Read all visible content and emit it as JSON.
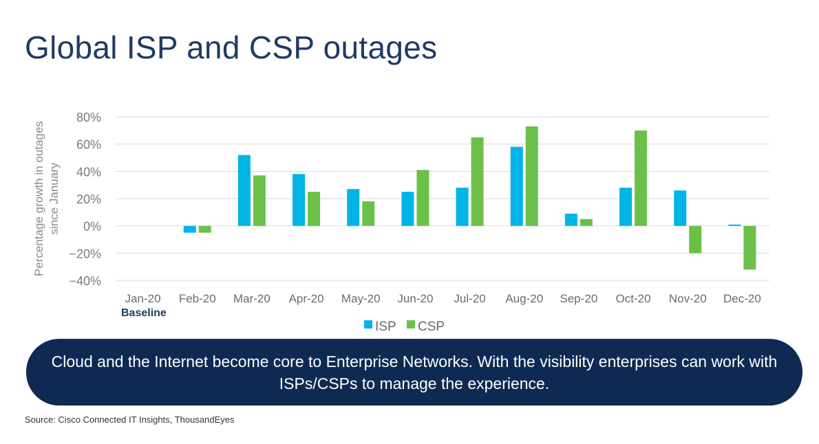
{
  "slide": {
    "title": "Global ISP and CSP outages",
    "baseline_label": "Baseline",
    "banner_text": "Cloud and the Internet become core to Enterprise Networks. With the visibility enterprises can work with ISPs/CSPs to manage the experience.",
    "source": "Source: Cisco Connected IT Insights, ThousandEyes"
  },
  "chart_data": {
    "type": "bar",
    "categories": [
      "Jan-20",
      "Feb-20",
      "Mar-20",
      "Apr-20",
      "May-20",
      "Jun-20",
      "Jul-20",
      "Aug-20",
      "Sep-20",
      "Oct-20",
      "Nov-20",
      "Dec-20"
    ],
    "series": [
      {
        "name": "ISP",
        "color": "#00b4e6",
        "values": [
          0,
          -5,
          52,
          38,
          27,
          25,
          28,
          58,
          9,
          28,
          26,
          1
        ]
      },
      {
        "name": "CSP",
        "color": "#6cc04a",
        "values": [
          0,
          -5,
          37,
          25,
          18,
          41,
          65,
          73,
          5,
          70,
          -20,
          -32
        ]
      }
    ],
    "ylabel": "Percentage growth in outages since January",
    "ylim": [
      -40,
      80
    ],
    "yticks": [
      80,
      60,
      40,
      20,
      0,
      -20,
      -40
    ],
    "ytick_labels": [
      "80%",
      "60%",
      "40%",
      "20%",
      "0%",
      "−20%",
      "−40%"
    ],
    "grid": true,
    "legend_position": "bottom-center"
  }
}
